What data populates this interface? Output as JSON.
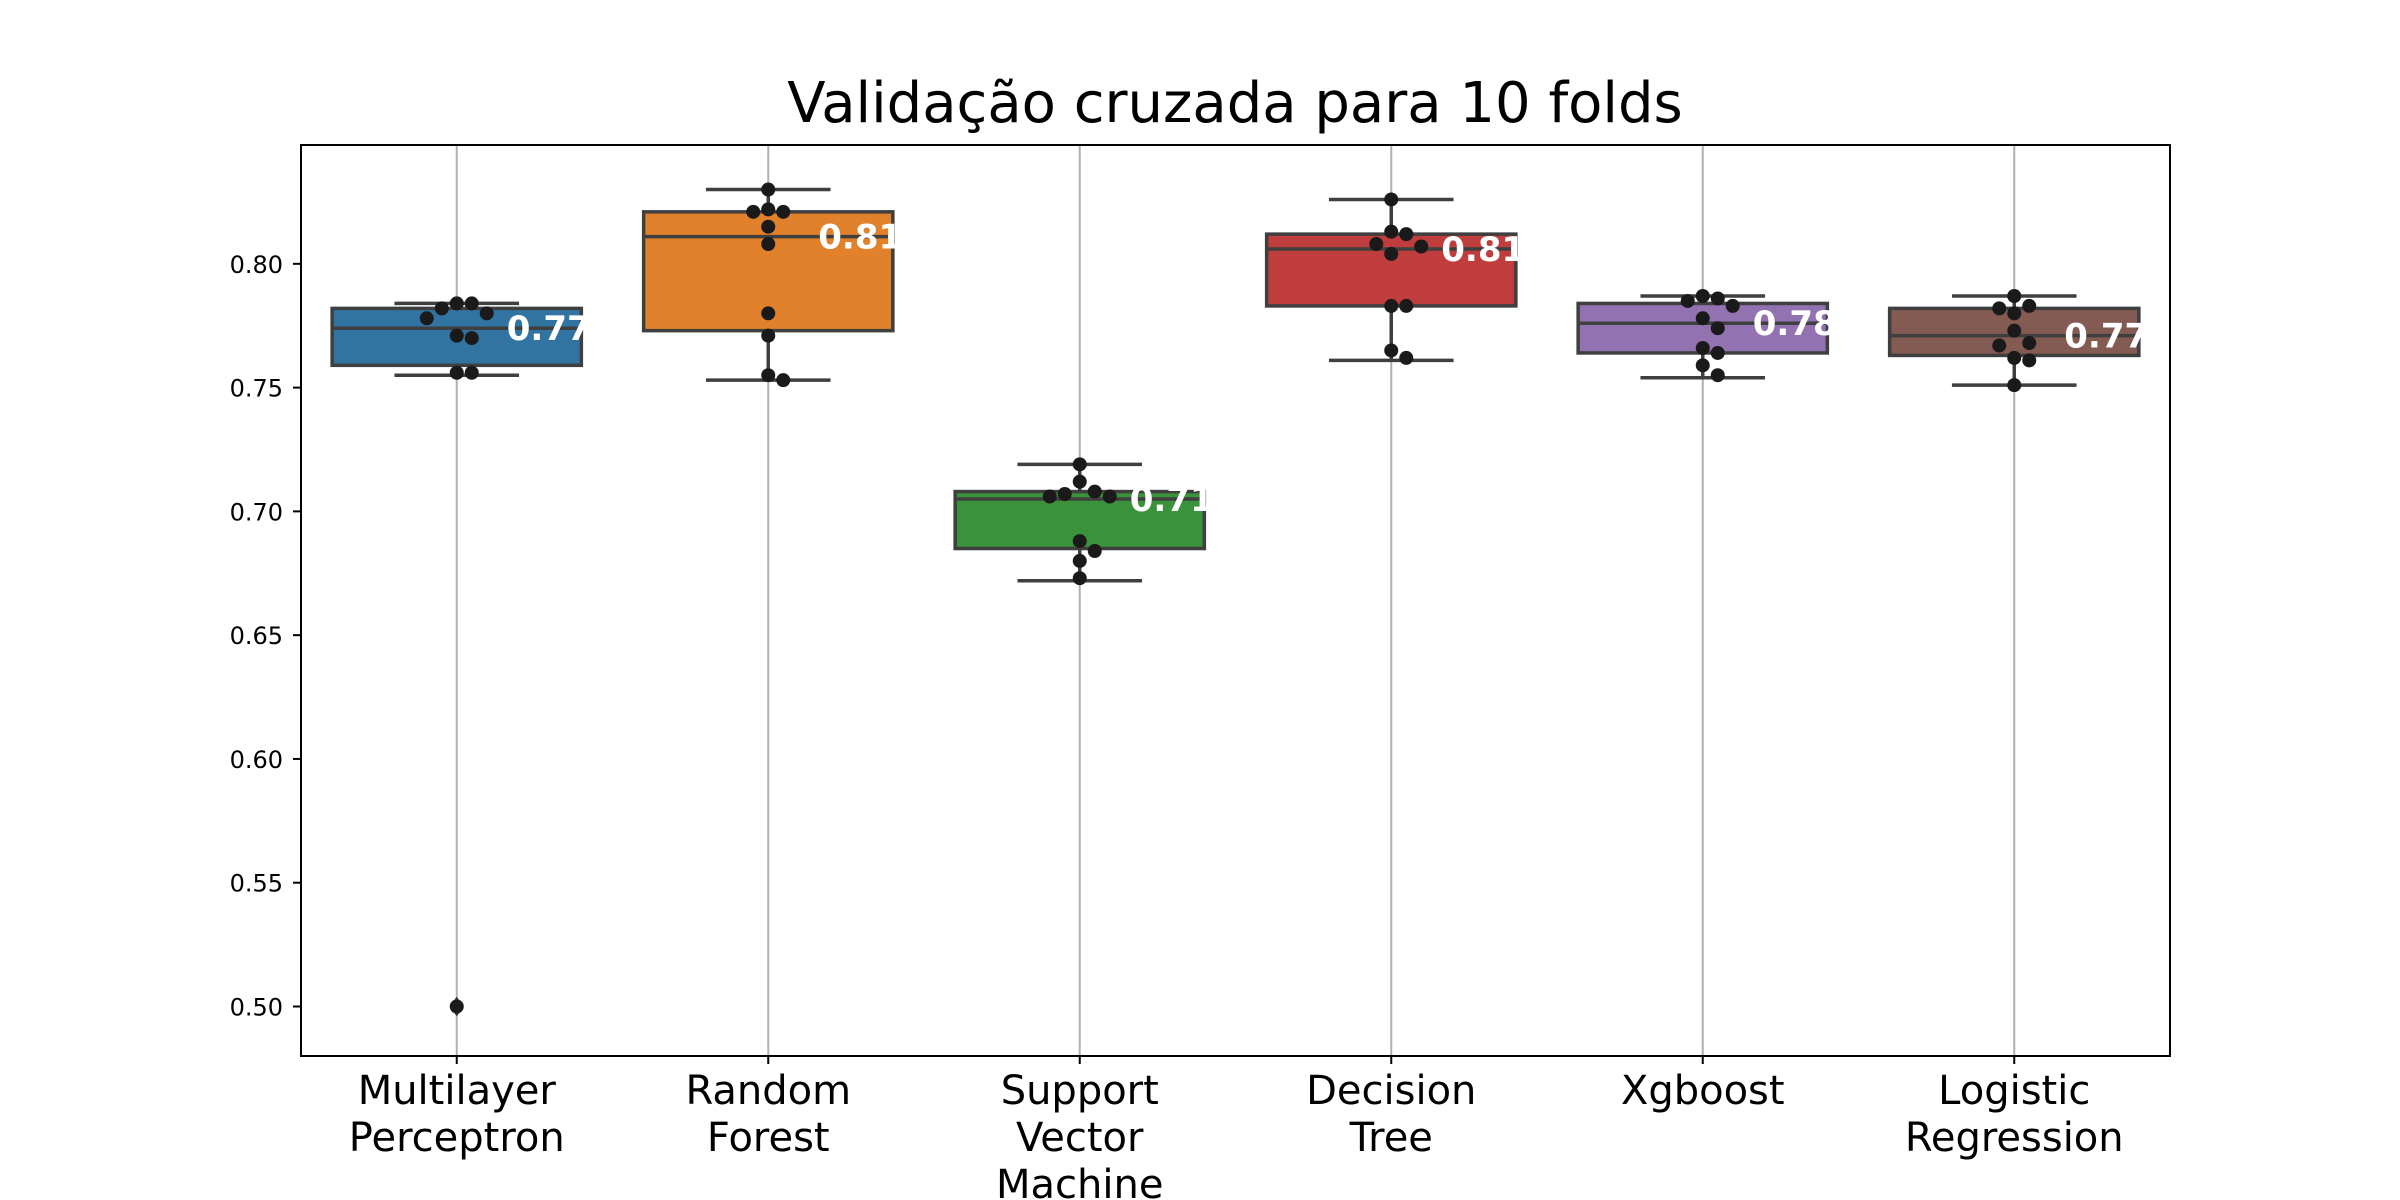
{
  "chart_data": {
    "type": "box",
    "title": "Validação cruzada para 10 folds",
    "xlabel": "",
    "ylabel": "",
    "ylim": [
      0.48,
      0.848
    ],
    "yticks": [
      0.5,
      0.55,
      0.6,
      0.65,
      0.7,
      0.75,
      0.8
    ],
    "ytick_labels": [
      "0.50",
      "0.55",
      "0.60",
      "0.65",
      "0.70",
      "0.75",
      "0.80"
    ],
    "grid": "vertical",
    "categories": [
      {
        "label": [
          "Multilayer",
          "Perceptron"
        ],
        "color": "#3274a1",
        "q1": 0.759,
        "median": 0.774,
        "q3": 0.782,
        "whisker_low": 0.755,
        "whisker_high": 0.784,
        "outliers": [
          0.5
        ],
        "median_label": "0.77",
        "points": [
          0.784,
          0.784,
          0.782,
          0.78,
          0.778,
          0.771,
          0.77,
          0.756,
          0.756,
          0.5
        ]
      },
      {
        "label": [
          "Random",
          "Forest"
        ],
        "color": "#e1812c",
        "q1": 0.773,
        "median": 0.811,
        "q3": 0.821,
        "whisker_low": 0.753,
        "whisker_high": 0.83,
        "outliers": [],
        "median_label": "0.81",
        "points": [
          0.83,
          0.822,
          0.821,
          0.821,
          0.815,
          0.808,
          0.78,
          0.771,
          0.755,
          0.753
        ]
      },
      {
        "label": [
          "Support",
          "Vector",
          "Machine"
        ],
        "color": "#3a923a",
        "q1": 0.685,
        "median": 0.705,
        "q3": 0.708,
        "whisker_low": 0.672,
        "whisker_high": 0.719,
        "outliers": [],
        "median_label": "0.71",
        "points": [
          0.719,
          0.712,
          0.708,
          0.707,
          0.706,
          0.706,
          0.688,
          0.684,
          0.68,
          0.673
        ]
      },
      {
        "label": [
          "Decision",
          "Tree"
        ],
        "color": "#c03d3e",
        "q1": 0.783,
        "median": 0.806,
        "q3": 0.812,
        "whisker_low": 0.761,
        "whisker_high": 0.826,
        "outliers": [],
        "median_label": "0.81",
        "points": [
          0.826,
          0.813,
          0.812,
          0.808,
          0.807,
          0.804,
          0.783,
          0.783,
          0.765,
          0.762
        ]
      },
      {
        "label": [
          "Xgboost"
        ],
        "color": "#9372b2",
        "q1": 0.764,
        "median": 0.776,
        "q3": 0.784,
        "whisker_low": 0.754,
        "whisker_high": 0.787,
        "outliers": [],
        "median_label": "0.78",
        "points": [
          0.787,
          0.786,
          0.785,
          0.783,
          0.778,
          0.774,
          0.766,
          0.764,
          0.759,
          0.755
        ]
      },
      {
        "label": [
          "Logistic",
          "Regression"
        ],
        "color": "#845b53",
        "q1": 0.763,
        "median": 0.771,
        "q3": 0.782,
        "whisker_low": 0.751,
        "whisker_high": 0.787,
        "outliers": [],
        "median_label": "0.77",
        "points": [
          0.787,
          0.783,
          0.782,
          0.78,
          0.773,
          0.768,
          0.767,
          0.762,
          0.761,
          0.751
        ]
      }
    ]
  }
}
